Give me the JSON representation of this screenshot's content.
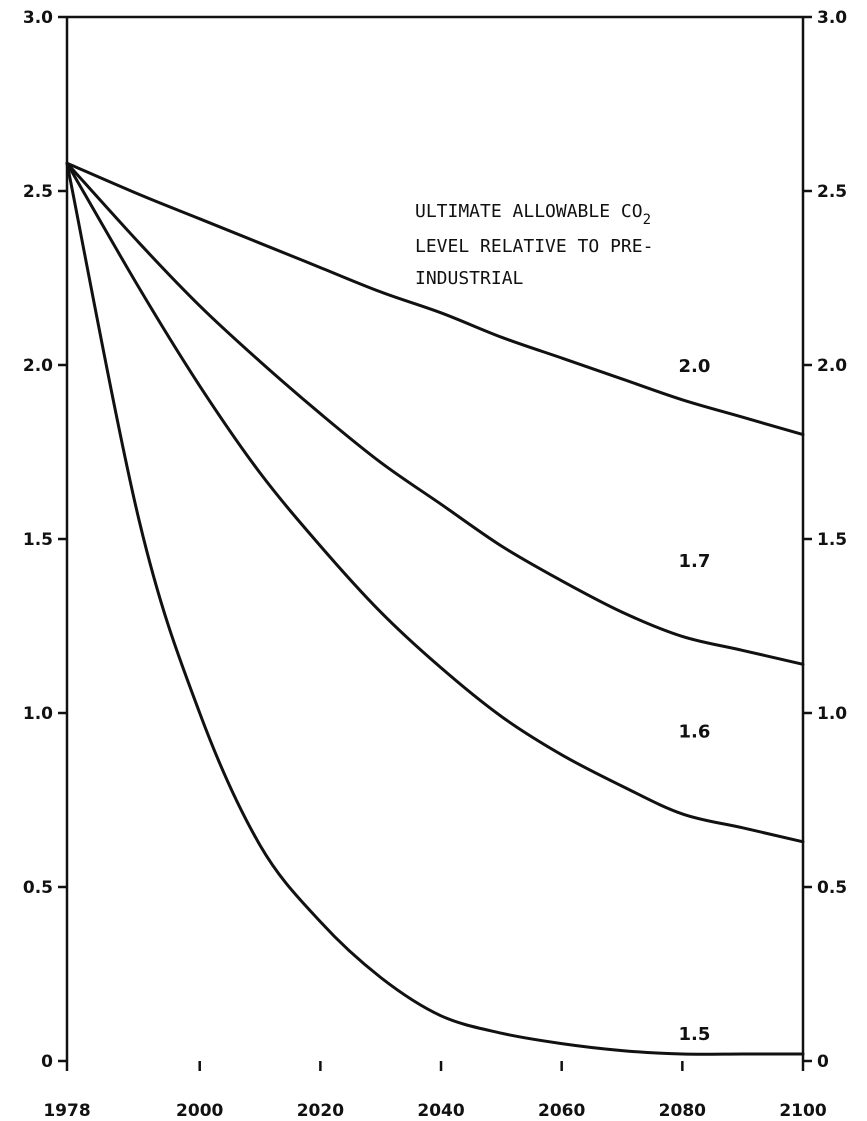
{
  "chart_data": {
    "type": "line",
    "title": "",
    "xlabel": "",
    "ylabel": "",
    "xlim": [
      1978,
      2100
    ],
    "ylim": [
      0,
      3.0
    ],
    "grid": false,
    "x_ticks": [
      "1978",
      "2000",
      "2020",
      "2040",
      "2060",
      "2080",
      "2100"
    ],
    "x_tick_values": [
      1978,
      2000,
      2020,
      2040,
      2060,
      2080,
      2100
    ],
    "y_ticks": [
      "0",
      "0.5",
      "1.0",
      "1.5",
      "2.0",
      "2.5",
      "3.0"
    ],
    "y_tick_values": [
      0,
      0.5,
      1.0,
      1.5,
      2.0,
      2.5,
      3.0
    ],
    "annotation": {
      "line1": "ULTIMATE ALLOWABLE CO",
      "line1_sub": "2",
      "line2": "LEVEL RELATIVE TO PRE-",
      "line3": "INDUSTRIAL"
    },
    "x": [
      1978,
      1990,
      2000,
      2010,
      2020,
      2030,
      2040,
      2050,
      2060,
      2070,
      2080,
      2090,
      2100
    ],
    "series": [
      {
        "name": "2.0",
        "label_at": [
          2082,
          1.98
        ],
        "values": [
          2.58,
          2.49,
          2.42,
          2.35,
          2.28,
          2.21,
          2.15,
          2.08,
          2.02,
          1.96,
          1.9,
          1.85,
          1.8
        ]
      },
      {
        "name": "1.7",
        "label_at": [
          2082,
          1.42
        ],
        "values": [
          2.58,
          2.35,
          2.17,
          2.01,
          1.86,
          1.72,
          1.6,
          1.48,
          1.38,
          1.29,
          1.22,
          1.18,
          1.14
        ]
      },
      {
        "name": "1.6",
        "label_at": [
          2082,
          0.93
        ],
        "values": [
          2.58,
          2.22,
          1.94,
          1.69,
          1.48,
          1.29,
          1.13,
          0.99,
          0.88,
          0.79,
          0.71,
          0.67,
          0.63
        ]
      },
      {
        "name": "1.5",
        "label_at": [
          2082,
          0.06
        ],
        "values": [
          2.58,
          1.55,
          1.0,
          0.62,
          0.4,
          0.24,
          0.13,
          0.08,
          0.05,
          0.03,
          0.02,
          0.02,
          0.02
        ]
      }
    ]
  }
}
